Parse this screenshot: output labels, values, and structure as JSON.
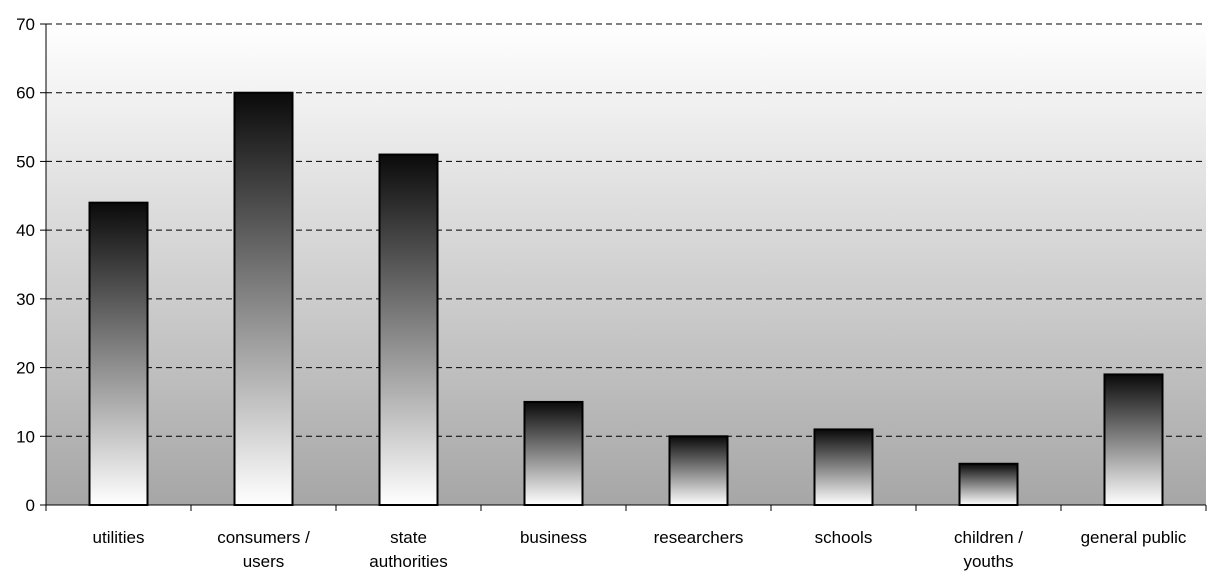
{
  "chart_data": {
    "type": "bar",
    "title": "",
    "xlabel": "",
    "ylabel": "",
    "categories": [
      [
        "utilities"
      ],
      [
        "consumers /",
        "users"
      ],
      [
        "state",
        "authorities"
      ],
      [
        "business"
      ],
      [
        "researchers"
      ],
      [
        "schools"
      ],
      [
        "children /",
        "youths"
      ],
      [
        "general public"
      ]
    ],
    "values": [
      44,
      60,
      51,
      15,
      10,
      11,
      6,
      19
    ],
    "ylim": [
      0,
      70
    ],
    "yticks": [
      "0",
      "10",
      "20",
      "30",
      "40",
      "50",
      "60",
      "70"
    ],
    "grid": "horizontal dashed",
    "legend": "none",
    "colors": {
      "plot_bg_top": "#ffffff",
      "plot_bg_bottom": "#a6a6a6",
      "bar_top": "#0a0a0a",
      "bar_bottom": "#ffffff",
      "grid": "#000000",
      "axis": "#000000"
    }
  }
}
